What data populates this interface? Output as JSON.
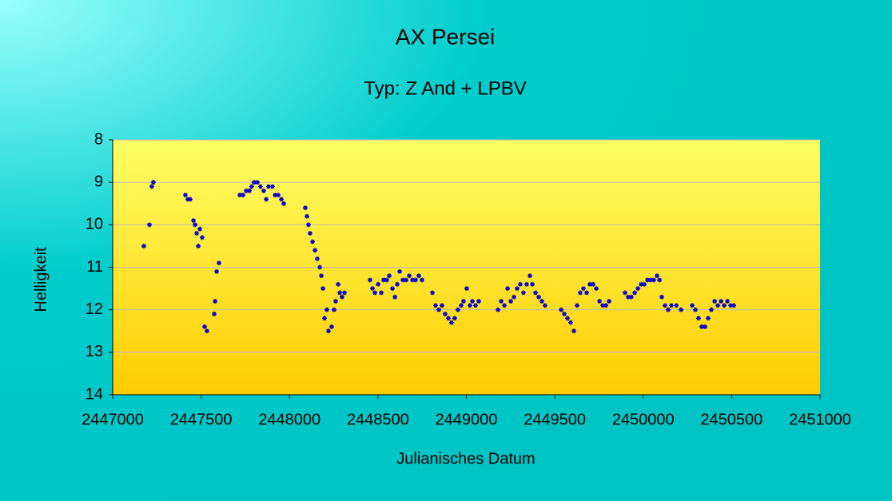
{
  "chart_data": {
    "type": "scatter",
    "title": "AX Persei",
    "subtitle": "Typ: Z And + LPBV",
    "xlabel": "Julianisches Datum",
    "ylabel": "Helligkeit",
    "xlim": [
      2447000,
      2451000
    ],
    "xticks": [
      2447000,
      2447500,
      2448000,
      2448500,
      2449000,
      2449500,
      2450000,
      2450500,
      2451000
    ],
    "ylim": [
      8,
      14
    ],
    "yticks": [
      8,
      9,
      10,
      11,
      12,
      13,
      14
    ],
    "y_inverted": true,
    "grid": true,
    "color": "#0000cc",
    "x": [
      2447176,
      2447208,
      2447221,
      2447230,
      2447411,
      2447425,
      2447438,
      2447457,
      2447466,
      2447475,
      2447484,
      2447493,
      2447506,
      2447520,
      2447533,
      2447574,
      2447579,
      2447588,
      2447601,
      2447719,
      2447737,
      2447755,
      2447773,
      2447786,
      2447800,
      2447818,
      2447836,
      2447854,
      2447868,
      2447881,
      2447904,
      2447918,
      2447936,
      2447954,
      2447967,
      2448089,
      2448098,
      2448107,
      2448116,
      2448130,
      2448144,
      2448157,
      2448171,
      2448180,
      2448189,
      2448198,
      2448211,
      2448220,
      2448238,
      2448252,
      2448261,
      2448275,
      2448284,
      2448297,
      2448311,
      2448455,
      2448469,
      2448483,
      2448501,
      2448519,
      2448532,
      2448550,
      2448564,
      2448582,
      2448596,
      2448609,
      2448623,
      2448641,
      2448659,
      2448677,
      2448695,
      2448713,
      2448731,
      2448749,
      2448808,
      2448826,
      2448844,
      2448862,
      2448880,
      2448898,
      2448916,
      2448934,
      2448952,
      2448971,
      2448984,
      2449002,
      2449020,
      2449034,
      2449052,
      2449070,
      2449179,
      2449197,
      2449215,
      2449233,
      2449251,
      2449269,
      2449287,
      2449305,
      2449323,
      2449341,
      2449359,
      2449373,
      2449391,
      2449409,
      2449427,
      2449445,
      2449536,
      2449554,
      2449572,
      2449590,
      2449608,
      2449626,
      2449644,
      2449662,
      2449680,
      2449698,
      2449717,
      2449735,
      2449753,
      2449771,
      2449789,
      2449807,
      2449897,
      2449915,
      2449933,
      2449952,
      2449970,
      2449988,
      2450006,
      2450024,
      2450042,
      2450060,
      2450078,
      2450092,
      2450105,
      2450123,
      2450141,
      2450159,
      2450187,
      2450214,
      2450277,
      2450295,
      2450313,
      2450331,
      2450349,
      2450367,
      2450385,
      2450404,
      2450422,
      2450440,
      2450458,
      2450476,
      2450494,
      2450512
    ],
    "values": [
      10.5,
      10.0,
      9.1,
      9.0,
      9.3,
      9.4,
      9.4,
      9.9,
      10.0,
      10.2,
      10.5,
      10.1,
      10.3,
      12.4,
      12.5,
      12.1,
      11.8,
      11.1,
      10.9,
      9.3,
      9.3,
      9.2,
      9.2,
      9.1,
      9.0,
      9.0,
      9.1,
      9.2,
      9.4,
      9.1,
      9.1,
      9.3,
      9.3,
      9.4,
      9.5,
      9.6,
      9.8,
      10.0,
      10.2,
      10.4,
      10.6,
      10.8,
      11.0,
      11.2,
      11.5,
      12.2,
      12.0,
      12.5,
      12.4,
      12.0,
      11.8,
      11.4,
      11.6,
      11.7,
      11.6,
      11.3,
      11.5,
      11.6,
      11.4,
      11.6,
      11.3,
      11.3,
      11.2,
      11.5,
      11.7,
      11.4,
      11.1,
      11.3,
      11.3,
      11.2,
      11.3,
      11.3,
      11.2,
      11.3,
      11.6,
      11.9,
      12.0,
      11.9,
      12.1,
      12.2,
      12.3,
      12.2,
      12.0,
      11.9,
      11.8,
      11.5,
      11.9,
      11.8,
      11.9,
      11.8,
      12.0,
      11.8,
      11.9,
      11.5,
      11.8,
      11.7,
      11.5,
      11.4,
      11.6,
      11.4,
      11.2,
      11.4,
      11.6,
      11.7,
      11.8,
      11.9,
      12.0,
      12.1,
      12.2,
      12.3,
      12.5,
      11.9,
      11.6,
      11.5,
      11.6,
      11.4,
      11.4,
      11.5,
      11.8,
      11.9,
      11.9,
      11.8,
      11.6,
      11.7,
      11.7,
      11.6,
      11.5,
      11.4,
      11.4,
      11.3,
      11.3,
      11.3,
      11.2,
      11.3,
      11.7,
      11.9,
      12.0,
      11.9,
      11.9,
      12.0,
      11.9,
      12.0,
      12.2,
      12.4,
      12.4,
      12.2,
      12.0,
      11.8,
      11.9,
      11.8,
      11.9,
      11.8,
      11.9,
      11.9
    ]
  }
}
